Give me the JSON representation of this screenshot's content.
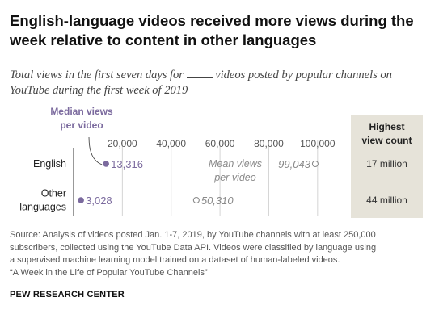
{
  "title": "English-language videos received more views during the week relative to content in other languages",
  "subtitle": {
    "before": "Total views in the first seven days for",
    "after": "videos posted by popular channels on YouTube during the first week of 2019"
  },
  "chart_data": {
    "type": "scatter",
    "categories": [
      "English",
      "Other languages"
    ],
    "category_lines": [
      [
        "English"
      ],
      [
        "Other",
        "languages"
      ]
    ],
    "xlim": [
      0,
      110000
    ],
    "xticks": [
      20000,
      40000,
      60000,
      80000,
      100000
    ],
    "xtick_labels": [
      "20,000",
      "40,000",
      "60,000",
      "80,000",
      "100,000"
    ],
    "series": [
      {
        "name": "Median views per video",
        "values": [
          13316,
          3028
        ],
        "labels": [
          "13,316",
          "3,028"
        ],
        "color": "#7b6a9e"
      },
      {
        "name": "Mean views per video",
        "values": [
          99043,
          50310
        ],
        "labels": [
          "99,043",
          "50,310"
        ],
        "color": "#8a8a8a"
      }
    ],
    "median_annotation": [
      "Median views",
      "per video"
    ],
    "mean_annotation": [
      "Mean views",
      "per video"
    ],
    "highest": {
      "header": [
        "Highest",
        "view count"
      ],
      "values": [
        "17 million",
        "44 million"
      ],
      "bg": "#e6e3d9"
    },
    "grid": true
  },
  "source": [
    "Source: Analysis of videos posted Jan. 1-7, 2019, by YouTube channels with at least 250,000",
    "subscribers, collected using the YouTube Data API. Videos were classified by language using",
    "a supervised machine learning model trained on a dataset of human-labeled videos.",
    "“A Week in the Life of Popular YouTube Channels”"
  ],
  "org": "PEW RESEARCH CENTER",
  "colors": {
    "median": "#7b6a9e",
    "mean": "#8a8a8a",
    "grid": "#d4d4d4",
    "axis": "#333333"
  }
}
